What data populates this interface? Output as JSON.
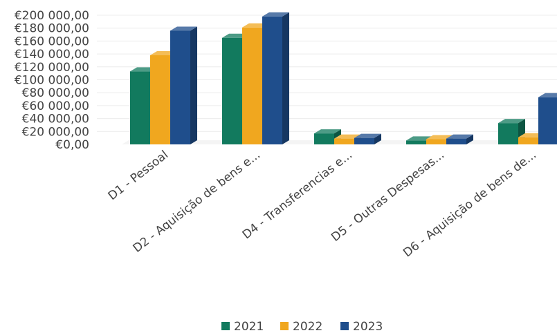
{
  "chart_data": {
    "type": "bar",
    "categories": [
      "D1 - Pessoal",
      "D2 - Aquisição de bens e...",
      "D4 - Transferencias e...",
      "D5 - Outras Despesas...",
      "D6 - Aquisição de bens de..."
    ],
    "series": [
      {
        "name": "2021",
        "color": "#127a5e",
        "values": [
          113000,
          165000,
          17000,
          6000,
          33000
        ]
      },
      {
        "name": "2022",
        "color": "#f0a71f",
        "values": [
          138000,
          181000,
          9000,
          8000,
          11000
        ]
      },
      {
        "name": "2023",
        "color": "#1f4e8c",
        "values": [
          176000,
          198000,
          10000,
          9000,
          73000
        ]
      }
    ],
    "ylim": [
      0,
      200000
    ],
    "yticks": [
      0,
      20000,
      40000,
      60000,
      80000,
      100000,
      120000,
      140000,
      160000,
      180000,
      200000
    ],
    "ytick_labels": [
      "€0,00",
      "€20 000,00",
      "€40 000,00",
      "€60 000,00",
      "€80 000,00",
      "€100 000,00",
      "€120 000,00",
      "€140 000,00",
      "€160 000,00",
      "€180 000,00",
      "€200 000,00"
    ],
    "legend_position": "bottom",
    "bar_style": "3d",
    "grid": true
  }
}
